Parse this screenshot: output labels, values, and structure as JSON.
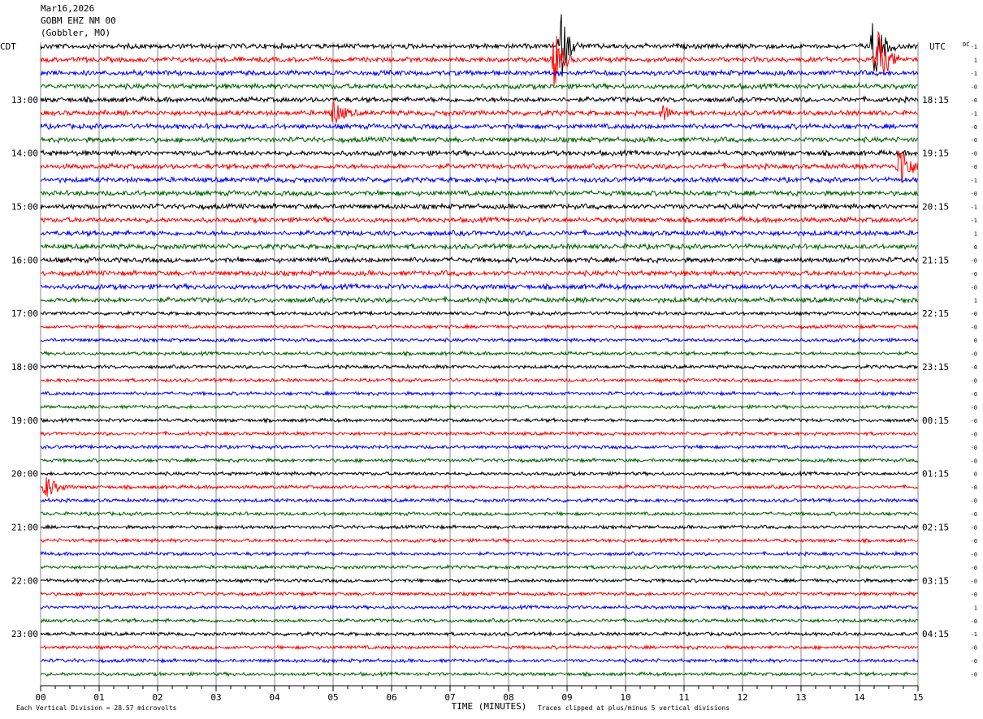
{
  "header": {
    "date": "Mar16,2026",
    "station": "GOBM EHZ NM 00",
    "location": "(Gobbler, MO)",
    "left_zone": "CDT",
    "right_zone": "UTC",
    "dc_label": "DC"
  },
  "footer": {
    "xlabel": "TIME (MINUTES)",
    "division_note": "Each Vertical Division =   28.57 microvolts",
    "clip_note": "Traces clipped at plus/minus 5 vertical divisions"
  },
  "chart_data": {
    "type": "line",
    "subtype": "helicorder",
    "x_label": "TIME (MINUTES)",
    "x_ticks": [
      "00",
      "01",
      "02",
      "03",
      "04",
      "05",
      "06",
      "07",
      "08",
      "09",
      "10",
      "11",
      "12",
      "13",
      "14",
      "15"
    ],
    "xlim": [
      0,
      15
    ],
    "grid": "vertical lines at each minute",
    "left_hour_labels": [
      "13:00",
      "14:00",
      "15:00",
      "16:00",
      "17:00",
      "18:00",
      "19:00",
      "20:00",
      "21:00",
      "22:00",
      "23:00"
    ],
    "right_hour_labels": [
      "18:15",
      "19:15",
      "20:15",
      "21:15",
      "22:15",
      "23:15",
      "00:15",
      "01:15",
      "02:15",
      "03:15",
      "04:15"
    ],
    "trace_colors": [
      "#000000",
      "#ff0000",
      "#0000ff",
      "#006400"
    ],
    "trace_count": 48,
    "dc_offsets": [
      "-1",
      "1",
      "-1",
      "-0",
      "-0",
      "-1",
      "-0",
      "-0",
      "-0",
      "-0",
      "-1",
      "-0",
      "-1",
      "-1",
      "1",
      "0",
      "-0",
      "-0",
      "-0",
      "1",
      "-0",
      "-0",
      "0",
      "-0",
      "-0",
      "-0",
      "-0",
      "-0",
      "-0",
      "-0",
      "-0",
      "-0",
      "0",
      "-0",
      "-0",
      "-0",
      "-0",
      "-0",
      "-0",
      "-0",
      "-0",
      "-0",
      "1",
      "-0",
      "-1",
      "-0",
      "-0",
      "-0"
    ],
    "events": [
      {
        "trace": 0,
        "minute": 8.9,
        "amplitude": 5,
        "width": 0.35
      },
      {
        "trace": 1,
        "minute": 8.8,
        "amplitude": 5,
        "width": 0.35
      },
      {
        "trace": 0,
        "minute": 14.25,
        "amplitude": 5,
        "width": 0.4
      },
      {
        "trace": 1,
        "minute": 14.3,
        "amplitude": 5,
        "width": 0.45
      },
      {
        "trace": 5,
        "minute": 5.0,
        "amplitude": 2,
        "width": 0.45
      },
      {
        "trace": 5,
        "minute": 10.65,
        "amplitude": 1.2,
        "width": 0.3
      },
      {
        "trace": 9,
        "minute": 14.7,
        "amplitude": 4,
        "width": 0.4
      },
      {
        "trace": 33,
        "minute": 0.1,
        "amplitude": 1.8,
        "width": 0.45
      }
    ]
  }
}
